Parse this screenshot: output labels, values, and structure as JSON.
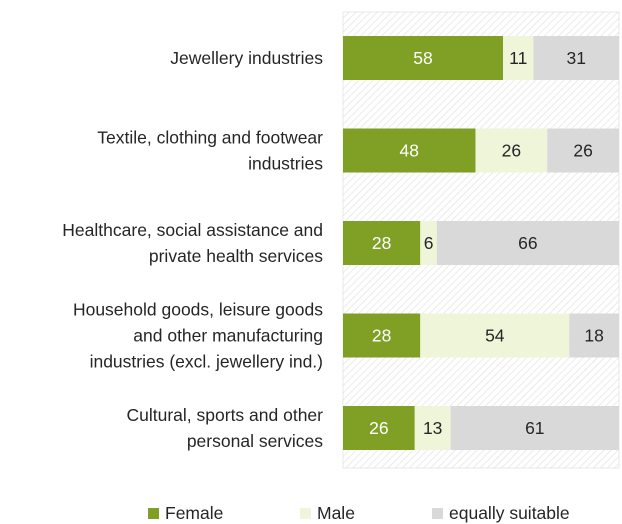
{
  "chart_data": {
    "type": "bar",
    "orientation": "horizontal",
    "stacked": true,
    "categories": [
      "Jewellery industries",
      "Textile, clothing and footwear industries",
      "Healthcare, social assistance and private health services",
      "Household goods, leisure goods and other manufacturing industries (excl. jewellery ind.)",
      "Cultural, sports and other personal services"
    ],
    "category_lines": [
      [
        "Jewellery industries"
      ],
      [
        "Textile, clothing and footwear",
        "industries"
      ],
      [
        "Healthcare, social assistance and",
        "private health services"
      ],
      [
        "Household goods, leisure goods",
        "and other manufacturing",
        "industries (excl. jewellery ind.)"
      ],
      [
        "Cultural, sports and other",
        "personal services"
      ]
    ],
    "series": [
      {
        "name": "Female",
        "values": [
          58,
          48,
          28,
          28,
          26
        ],
        "color": "#7F9F25",
        "label_color": "#ffffff"
      },
      {
        "name": "Male",
        "values": [
          11,
          26,
          6,
          54,
          13
        ],
        "color": "#EEF5D9",
        "label_color": "#262626"
      },
      {
        "name": "equally suitable",
        "values": [
          31,
          26,
          66,
          18,
          61
        ],
        "color": "#D9D9D9",
        "label_color": "#262626"
      }
    ],
    "xlim": [
      0,
      100
    ],
    "legend_position": "bottom",
    "grid": false,
    "background": "hatched"
  }
}
